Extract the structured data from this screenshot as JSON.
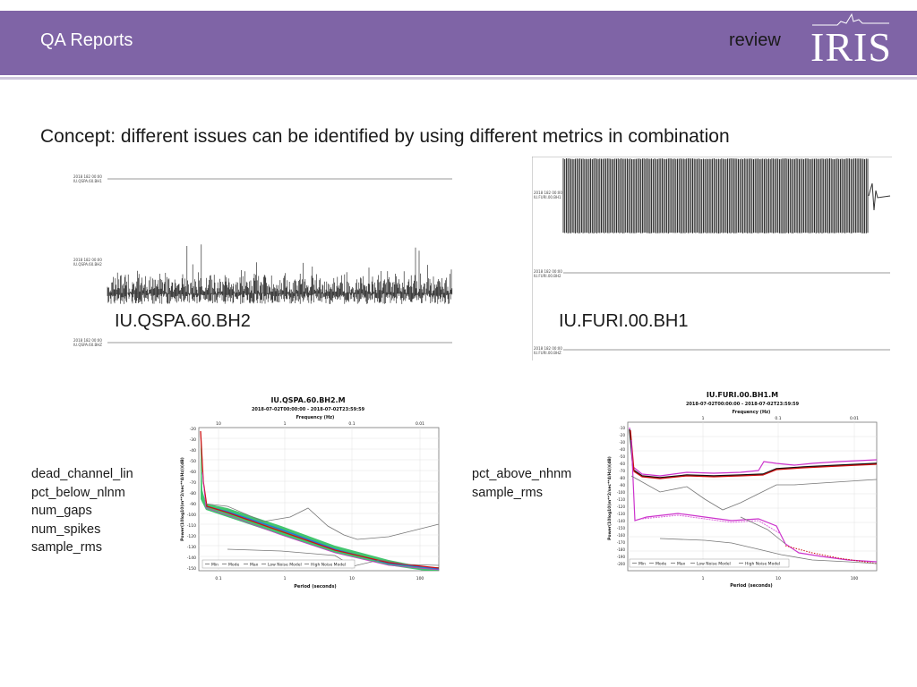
{
  "header": {
    "title": "QA Reports",
    "tag": "review",
    "logo_text": "IRIS"
  },
  "concept": "Concept: different issues can be identified by using different metrics in combination",
  "left_example": {
    "station": "IU.QSPA.60.BH2",
    "metrics": [
      "dead_channel_lin",
      "pct_below_nlnm",
      "num_gaps",
      "num_spikes",
      "sample_rms"
    ],
    "psd": {
      "title": "IU.QSPA.60.BH2.M",
      "subtitle": "2018-07-02T00:00:00 - 2018-07-02T23:59:59",
      "top_axis_label": "Frequency (Hz)",
      "top_ticks": [
        "10",
        "1",
        "0.1",
        "0.01"
      ],
      "bottom_axis_label": "Period (seconds)",
      "bottom_ticks": [
        "0.1",
        "1",
        "10",
        "100"
      ],
      "y_axis_label": "Power(10log10(m**2/sec**4/Hz))(dB)",
      "y_ticks": [
        "-20",
        "-30",
        "-40",
        "-50",
        "-60",
        "-70",
        "-80",
        "-90",
        "-100",
        "-110",
        "-120",
        "-130",
        "-140",
        "-150"
      ],
      "legend": [
        "Min",
        "Mode",
        "Max",
        "Low Noise Model",
        "High Noise Model"
      ]
    }
  },
  "right_example": {
    "station": "IU.FURI.00.BH1",
    "metrics": [
      "pct_above_nhnm",
      "sample_rms"
    ],
    "psd": {
      "title": "IU.FURI.00.BH1.M",
      "subtitle": "2018-07-02T00:00:00 - 2018-07-02T23:59:59",
      "top_axis_label": "Frequency (Hz)",
      "top_ticks": [
        "1",
        "0.1",
        "0.01"
      ],
      "bottom_axis_label": "Period (seconds)",
      "bottom_ticks": [
        "1",
        "10",
        "100"
      ],
      "y_axis_label": "Power(10log10(m**2/sec**4/Hz))(dB)",
      "y_ticks": [
        "-10",
        "-20",
        "-30",
        "-40",
        "-50",
        "-60",
        "-70",
        "-80",
        "-90",
        "-100",
        "-110",
        "-120",
        "-130",
        "-140",
        "-150",
        "-160",
        "-170",
        "-180",
        "-190",
        "-200"
      ],
      "legend": [
        "Min",
        "Mode",
        "Max",
        "Low Noise Model",
        "High Noise Model"
      ]
    }
  },
  "colors": {
    "header_bg": "#7f64a6",
    "mode_line": "#cc1111",
    "psd_band": "#22bb55",
    "noise_model": "#777777",
    "min_max": "#cc33cc"
  }
}
